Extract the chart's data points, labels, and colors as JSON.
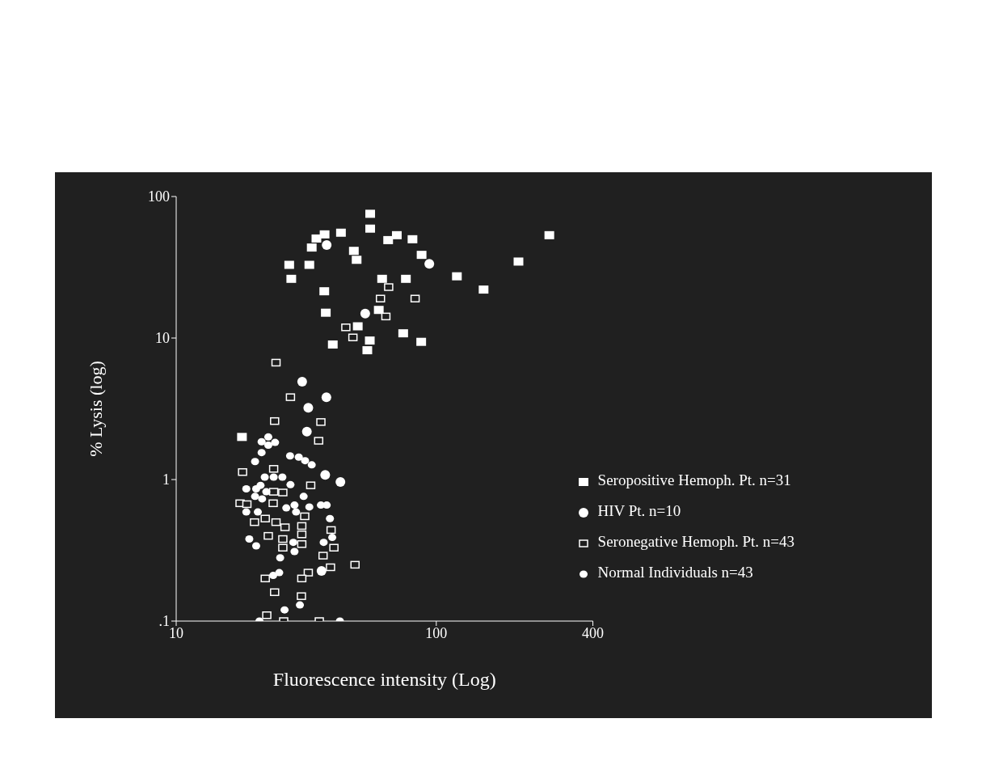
{
  "chart_data": {
    "type": "scatter",
    "xlabel": "Fluorescence intensity (Log)",
    "ylabel": "% Lysis (log)",
    "log": "xy",
    "xlim": [
      10,
      400
    ],
    "xticks": [
      10,
      100,
      400
    ],
    "ylim": [
      0.1,
      100
    ],
    "yticks": [
      {
        "value": 0.1,
        "label": ".1"
      },
      1,
      10,
      100
    ],
    "grid": false,
    "legend": "right",
    "series": [
      {
        "name": "Seropositive Hemoph. Pt. n=31",
        "color": "#ffffff",
        "marker": "square",
        "x": [
          17.9,
          55.7,
          55.7,
          34.6,
          37.2,
          43.0,
          33.2,
          27.2,
          32.5,
          27.7,
          48.2,
          49.4,
          37.1,
          37.6,
          49.9,
          40.0,
          55.5,
          54.3,
          60.1,
          61.9,
          65.3,
          70.5,
          81.0,
          87.8,
          76.4,
          74.6,
          87.5,
          120,
          272,
          207,
          152
        ],
        "values": [
          2.0,
          75.5,
          59.3,
          50.5,
          54.0,
          55.5,
          43.6,
          32.9,
          32.9,
          26.2,
          41.3,
          35.7,
          21.4,
          15.1,
          12.1,
          9.0,
          9.6,
          8.2,
          15.8,
          26.2,
          49.2,
          53.3,
          49.9,
          38.7,
          26.2,
          10.8,
          9.4,
          27.3,
          53.3,
          34.7,
          22.0
        ]
      },
      {
        "name": "HIV Pt. n=10",
        "color": "#ffffff",
        "marker": "circle",
        "x": [
          37.9,
          94.0,
          53.3,
          30.5,
          37.8,
          32.2,
          31.8,
          37.4,
          42.8,
          36.2
        ],
        "values": [
          45.4,
          33.4,
          14.9,
          4.92,
          3.81,
          3.21,
          2.18,
          1.08,
          0.96,
          0.226
        ]
      },
      {
        "name": "Seronegative Hemoph. Pt. n=43",
        "color": "#ffffff",
        "marker": "square",
        "x": [
          24.2,
          27.5,
          23.9,
          36.0,
          35.3,
          18.0,
          23.7,
          32.9,
          23.7,
          25.7,
          17.6,
          18.7,
          23.6,
          31.2,
          20.0,
          22.0,
          24.2,
          26.2,
          30.4,
          39.4,
          22.6,
          30.4,
          25.7,
          30.4,
          25.7,
          40.4,
          36.7,
          39.2,
          48.7,
          32.2,
          30.4,
          22.0,
          23.9,
          30.3,
          22.3,
          25.9,
          35.5,
          65.6,
          61.0,
          64.0,
          82.9,
          44.9,
          47.8
        ],
        "values": [
          6.7,
          3.82,
          2.59,
          2.55,
          1.88,
          1.13,
          1.19,
          0.91,
          0.82,
          0.81,
          0.68,
          0.67,
          0.68,
          0.55,
          0.5,
          0.53,
          0.5,
          0.46,
          0.47,
          0.44,
          0.4,
          0.41,
          0.38,
          0.35,
          0.33,
          0.33,
          0.29,
          0.24,
          0.25,
          0.22,
          0.2,
          0.2,
          0.16,
          0.15,
          0.11,
          0.1,
          0.1,
          22.9,
          19.0,
          14.2,
          19.0,
          11.9,
          10.1
        ]
      },
      {
        "name": "Normal Individuals  n=43",
        "color": "#ffffff",
        "marker": "circle",
        "x": [
          22.6,
          21.3,
          22.6,
          24.0,
          21.3,
          20.1,
          27.4,
          29.6,
          31.3,
          33.2,
          21.9,
          23.7,
          25.6,
          27.5,
          21.1,
          22.2,
          20.1,
          21.4,
          30.9,
          26.5,
          28.5,
          28.9,
          32.5,
          36.0,
          37.9,
          18.6,
          20.6,
          39.0,
          39.8,
          19.1,
          20.3,
          28.2,
          28.5,
          36.9,
          25.1,
          24.9,
          23.6,
          29.9,
          26.1,
          20.9,
          42.6,
          18.6,
          20.3
        ],
        "values": [
          2.0,
          1.85,
          1.75,
          1.83,
          1.55,
          1.34,
          1.47,
          1.44,
          1.36,
          1.27,
          1.04,
          1.04,
          1.04,
          0.92,
          0.91,
          0.82,
          0.76,
          0.73,
          0.76,
          0.63,
          0.66,
          0.59,
          0.64,
          0.66,
          0.66,
          0.59,
          0.59,
          0.53,
          0.39,
          0.38,
          0.34,
          0.36,
          0.31,
          0.36,
          0.28,
          0.22,
          0.21,
          0.13,
          0.12,
          0.1,
          0.1,
          0.86,
          0.86
        ]
      }
    ]
  }
}
